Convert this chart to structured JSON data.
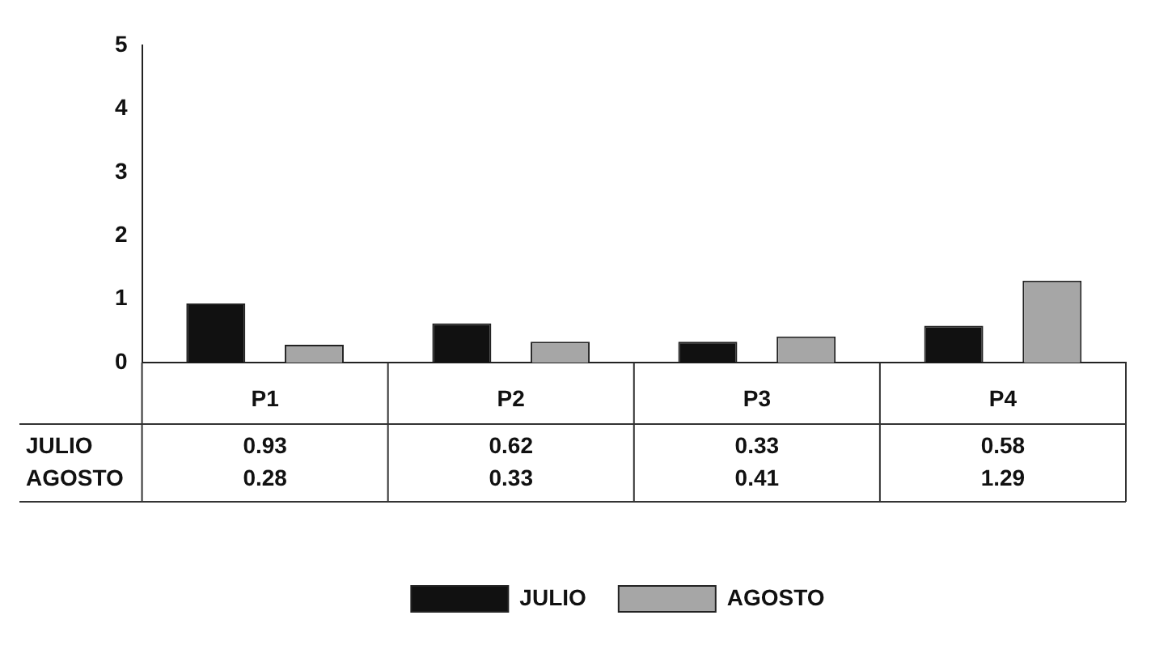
{
  "chart_data": {
    "type": "bar",
    "categories": [
      "P1",
      "P2",
      "P3",
      "P4"
    ],
    "series": [
      {
        "name": "JULIO",
        "color": "#111111",
        "values": [
          0.93,
          0.62,
          0.33,
          0.58
        ]
      },
      {
        "name": "AGOSTO",
        "color": "#a6a6a6",
        "values": [
          0.28,
          0.33,
          0.41,
          1.29
        ]
      }
    ],
    "ylim": [
      0,
      5
    ],
    "yticks": [
      0,
      1,
      2,
      3,
      4,
      5
    ],
    "grid": false,
    "legend": "bottom",
    "data_labels": true
  }
}
